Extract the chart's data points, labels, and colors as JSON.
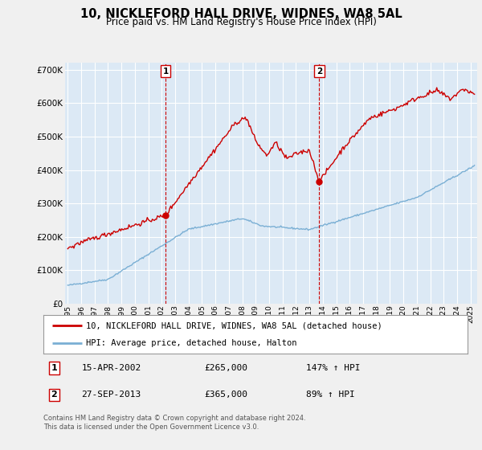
{
  "title": "10, NICKLEFORD HALL DRIVE, WIDNES, WA8 5AL",
  "subtitle": "Price paid vs. HM Land Registry's House Price Index (HPI)",
  "ylim": [
    0,
    720000
  ],
  "xlim_start": 1994.8,
  "xlim_end": 2025.5,
  "legend_line1": "10, NICKLEFORD HALL DRIVE, WIDNES, WA8 5AL (detached house)",
  "legend_line2": "HPI: Average price, detached house, Halton",
  "sale1_date": "15-APR-2002",
  "sale1_price": 265000,
  "sale1_label": "147% ↑ HPI",
  "sale1_x": 2002.29,
  "sale2_date": "27-SEP-2013",
  "sale2_price": 365000,
  "sale2_label": "89% ↑ HPI",
  "sale2_x": 2013.74,
  "footer": "Contains HM Land Registry data © Crown copyright and database right 2024.\nThis data is licensed under the Open Government Licence v3.0.",
  "red_color": "#cc0000",
  "blue_color": "#7aafd4",
  "plot_bg": "#dce9f5",
  "background_color": "#f0f0f0"
}
